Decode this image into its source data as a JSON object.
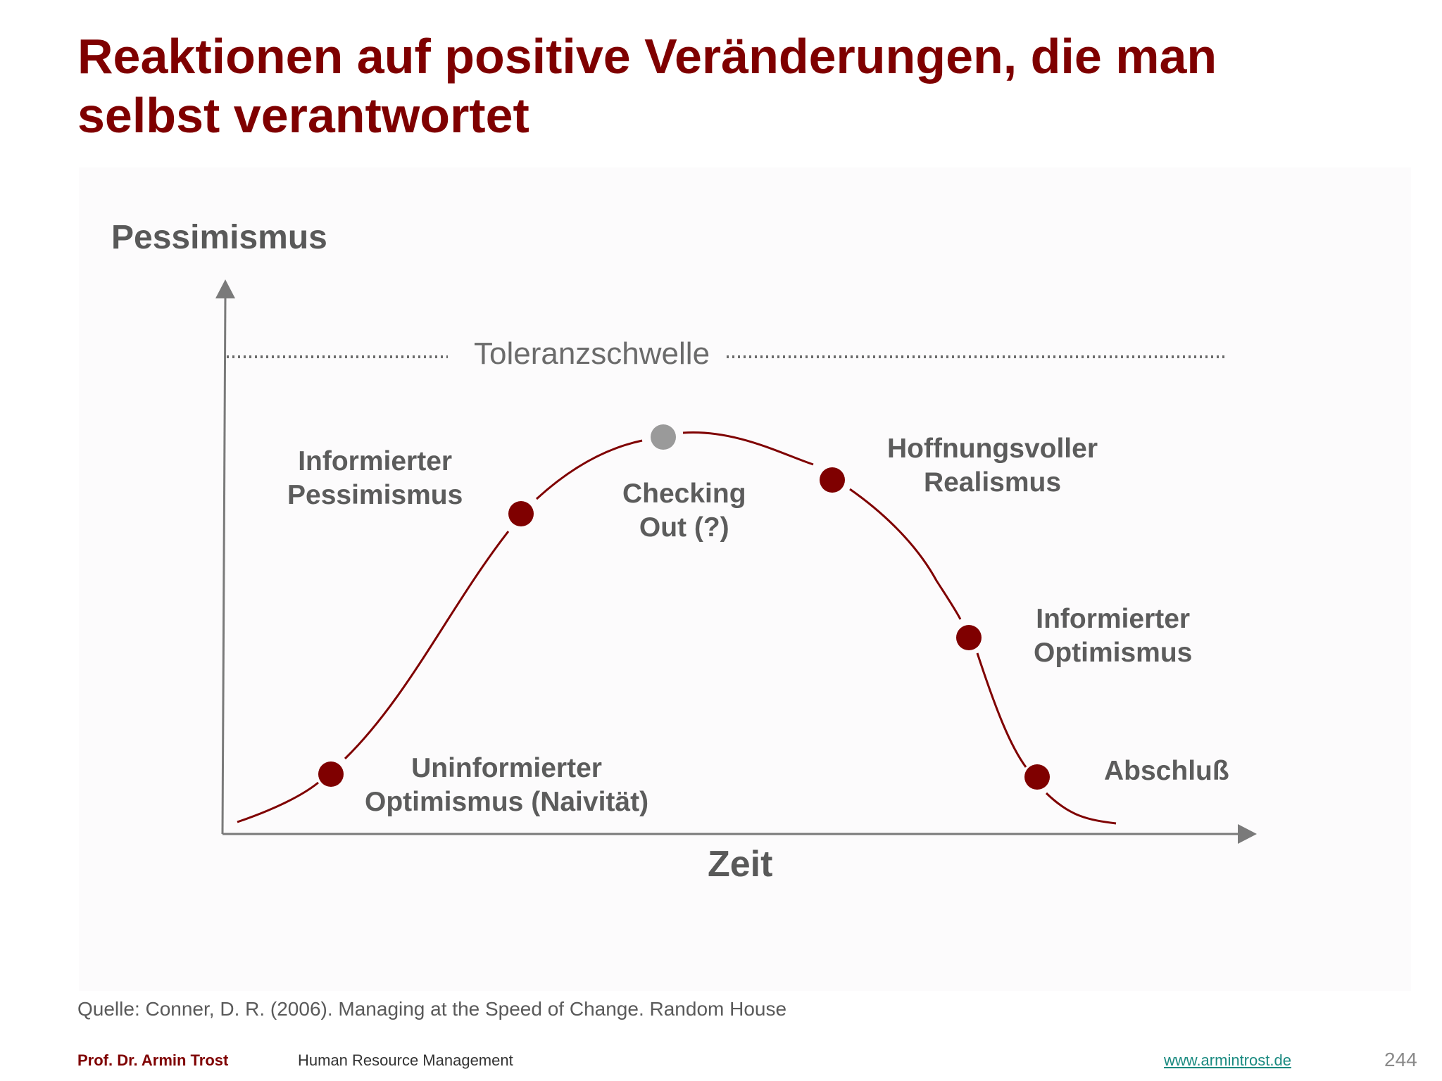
{
  "title_lines": [
    "Reaktionen auf positive Veränderungen, die man",
    "selbst verantwortet"
  ],
  "diagram": {
    "y_axis_label": "Pessimismus",
    "x_axis_label": "Zeit",
    "threshold_label": "Toleranzschwelle",
    "stages": [
      {
        "lines": [
          "Uninformierter",
          "Optimismus (Naivität)"
        ],
        "color": "#7f0000"
      },
      {
        "lines": [
          "Informierter",
          "Pessimismus"
        ],
        "color": "#7f0000"
      },
      {
        "lines": [
          "Checking",
          "Out (?)"
        ],
        "color": "#9a9a9a"
      },
      {
        "lines": [
          "Hoffnungsvoller",
          "Realismus"
        ],
        "color": "#7f0000"
      },
      {
        "lines": [
          "Informierter",
          "Optimismus"
        ],
        "color": "#7f0000"
      },
      {
        "lines": [
          "Abschluß"
        ],
        "color": "#7f0000"
      }
    ],
    "curve_color": "#7f0000",
    "axis_color": "#7a7a7a"
  },
  "source": "Quelle: Conner, D. R. (2006). Managing at the Speed of Change. Random House",
  "footer": {
    "author": "Prof. Dr. Armin Trost",
    "course": "Human Resource Management",
    "url": "www.armintrost.de",
    "page": "244"
  }
}
